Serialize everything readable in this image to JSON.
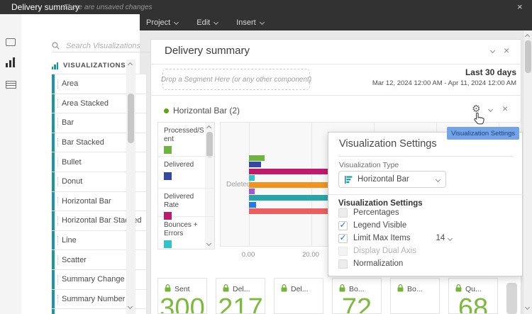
{
  "window": {
    "title": "Delivery summary",
    "unsaved_note": "There are unsaved changes"
  },
  "menubar": {
    "items": [
      "Project",
      "Edit",
      "Insert"
    ]
  },
  "sidebar": {
    "search_placeholder": "Search Visualizations",
    "section_label": "VISUALIZATIONS",
    "items": [
      "Area",
      "Area Stacked",
      "Bar",
      "Bar Stacked",
      "Bullet",
      "Donut",
      "Horizontal Bar",
      "Horizontal Bar Stacked",
      "Line",
      "Scatter",
      "Summary Change",
      "Summary Number",
      "Text"
    ]
  },
  "panel": {
    "title": "Delivery summary",
    "dropzone_label": "Drop a Segment Here (or any other component)",
    "date_label": "Last 30 days",
    "date_range": "Mar 12, 2024 12:00 AM - Apr 11, 2024 12:00 AM"
  },
  "viz": {
    "title": "Horizontal Bar (2)",
    "legend": [
      {
        "label": "Processed/Sent",
        "color": "#6fb43f"
      },
      {
        "label": "Delivered",
        "color": "#3547a3"
      },
      {
        "label": "Delivered Rate",
        "color": "#bf1b6d"
      },
      {
        "label": "Bounces + Errors",
        "color": "#2fc4cb"
      }
    ]
  },
  "chart_data": {
    "type": "bar",
    "orientation": "horizontal",
    "categories": [
      "Deleted"
    ],
    "series": [
      {
        "name": "Processed/Sent",
        "color": "#6fb43f",
        "value": 5
      },
      {
        "name": "Delivered",
        "color": "#3547a3",
        "value": 3.9
      },
      {
        "name": "Delivered Rate",
        "color": "#bf1b6d",
        "value": 47
      },
      {
        "name": "Bounces + Errors",
        "color": "#2fc4cb",
        "value": 1.8
      },
      {
        "name": "",
        "color": "#f1941f",
        "value": 46
      },
      {
        "name": "",
        "color": "#9b59d6",
        "value": 1.8
      },
      {
        "name": "",
        "color": "#27a5ab",
        "value": 47
      },
      {
        "name": "",
        "color": "#2377f0",
        "value": 2.3
      },
      {
        "name": "",
        "color": "#ea5f5f",
        "value": 48
      }
    ],
    "x_ticks": [
      "0.00",
      "20.00"
    ],
    "x_tick_values": [
      0,
      20
    ],
    "xlim_visible": [
      0,
      25
    ],
    "note": "right portion of chart hidden behind settings popover; legend scrollable with more hidden entries"
  },
  "popover": {
    "title": "Visualization Settings",
    "type_label": "Visualization Type",
    "type_value": "Horizontal Bar",
    "settings_label": "Visualization Settings",
    "options": [
      {
        "label": "Percentages",
        "checked": false,
        "disabled": false
      },
      {
        "label": "Legend Visible",
        "checked": true,
        "disabled": false
      },
      {
        "label": "Limit Max Items",
        "checked": true,
        "disabled": false,
        "extra": "14"
      },
      {
        "label": "Display Dual Axis",
        "checked": false,
        "disabled": true
      },
      {
        "label": "Normalization",
        "checked": false,
        "disabled": false
      }
    ]
  },
  "tooltip": {
    "label": "Visualization Settings"
  },
  "cards": [
    {
      "label": "Sent",
      "value": "300"
    },
    {
      "label": "Del...",
      "value": "217"
    },
    {
      "label": "Del...",
      "value": ""
    },
    {
      "label": "Bo...",
      "value": "72"
    },
    {
      "label": "Bo...",
      "value": ""
    },
    {
      "label": "Qu...",
      "value": "68"
    }
  ],
  "colors": {
    "accent_teal": "#1b97a3",
    "check_blue": "#2d6bce",
    "card_green": "#7cba3d",
    "tooltip_blue": "#74a3e9",
    "status_dot_green": "#61a413"
  }
}
